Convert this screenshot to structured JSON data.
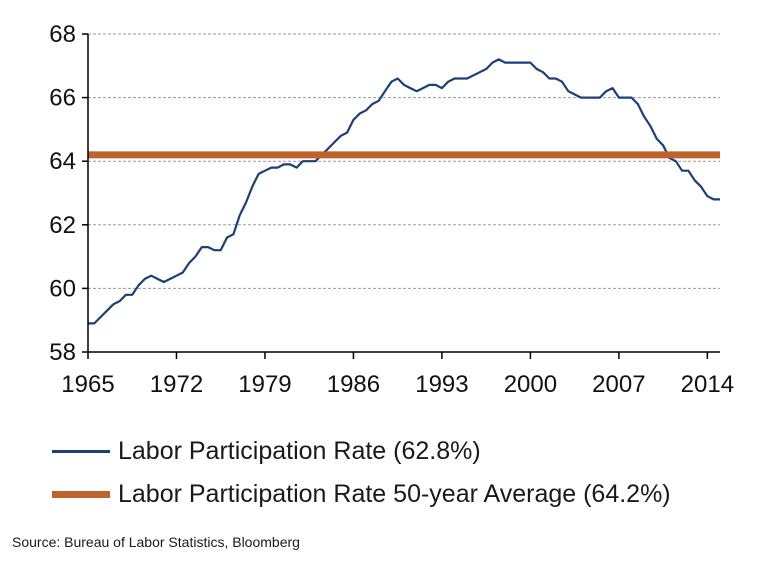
{
  "colors": {
    "series": "#1b3f7a",
    "average": "#c0622b",
    "grid": "#9a9a9a",
    "axis": "#000000"
  },
  "legend": {
    "series_label": "Labor Participation Rate (62.8%)",
    "average_label": "Labor Participation Rate 50-year Average (64.2%)"
  },
  "source": "Source: Bureau of Labor Statistics, Bloomberg",
  "chart_data": {
    "type": "line",
    "title": "",
    "xlabel": "",
    "ylabel": "",
    "xlim": [
      1965,
      2015
    ],
    "ylim": [
      58,
      68
    ],
    "x_ticks": [
      1965,
      1972,
      1979,
      1986,
      1993,
      2000,
      2007,
      2014
    ],
    "y_ticks": [
      58,
      60,
      62,
      64,
      66,
      68
    ],
    "grid": "horizontal dashed",
    "legend_position": "bottom",
    "series": [
      {
        "name": "Labor Participation Rate (62.8%)",
        "x": [
          1965.0,
          1965.5,
          1966.0,
          1966.5,
          1967.0,
          1967.5,
          1968.0,
          1968.5,
          1969.0,
          1969.5,
          1970.0,
          1970.5,
          1971.0,
          1971.5,
          1972.0,
          1972.5,
          1973.0,
          1973.5,
          1974.0,
          1974.5,
          1975.0,
          1975.5,
          1976.0,
          1976.5,
          1977.0,
          1977.5,
          1978.0,
          1978.5,
          1979.0,
          1979.5,
          1980.0,
          1980.5,
          1981.0,
          1981.5,
          1982.0,
          1982.5,
          1983.0,
          1983.5,
          1984.0,
          1984.5,
          1985.0,
          1985.5,
          1986.0,
          1986.5,
          1987.0,
          1987.5,
          1988.0,
          1988.5,
          1989.0,
          1989.5,
          1990.0,
          1990.5,
          1991.0,
          1991.5,
          1992.0,
          1992.5,
          1993.0,
          1993.5,
          1994.0,
          1994.5,
          1995.0,
          1995.5,
          1996.0,
          1996.5,
          1997.0,
          1997.5,
          1998.0,
          1998.5,
          1999.0,
          1999.5,
          2000.0,
          2000.5,
          2001.0,
          2001.5,
          2002.0,
          2002.5,
          2003.0,
          2003.5,
          2004.0,
          2004.5,
          2005.0,
          2005.5,
          2006.0,
          2006.5,
          2007.0,
          2007.5,
          2008.0,
          2008.5,
          2009.0,
          2009.5,
          2010.0,
          2010.5,
          2011.0,
          2011.5,
          2012.0,
          2012.5,
          2013.0,
          2013.5,
          2014.0,
          2014.5,
          2015.0
        ],
        "values": [
          58.9,
          58.9,
          59.1,
          59.3,
          59.5,
          59.6,
          59.8,
          59.8,
          60.1,
          60.3,
          60.4,
          60.3,
          60.2,
          60.3,
          60.4,
          60.5,
          60.8,
          61.0,
          61.3,
          61.3,
          61.2,
          61.2,
          61.6,
          61.7,
          62.3,
          62.7,
          63.2,
          63.6,
          63.7,
          63.8,
          63.8,
          63.9,
          63.9,
          63.8,
          64.0,
          64.0,
          64.0,
          64.2,
          64.4,
          64.6,
          64.8,
          64.9,
          65.3,
          65.5,
          65.6,
          65.8,
          65.9,
          66.2,
          66.5,
          66.6,
          66.4,
          66.3,
          66.2,
          66.3,
          66.4,
          66.4,
          66.3,
          66.5,
          66.6,
          66.6,
          66.6,
          66.7,
          66.8,
          66.9,
          67.1,
          67.2,
          67.1,
          67.1,
          67.1,
          67.1,
          67.1,
          66.9,
          66.8,
          66.6,
          66.6,
          66.5,
          66.2,
          66.1,
          66.0,
          66.0,
          66.0,
          66.0,
          66.2,
          66.3,
          66.0,
          66.0,
          66.0,
          65.8,
          65.4,
          65.1,
          64.7,
          64.5,
          64.1,
          64.0,
          63.7,
          63.7,
          63.4,
          63.2,
          62.9,
          62.8,
          62.8
        ]
      },
      {
        "name": "Labor Participation Rate 50-year Average (64.2%)",
        "x": [
          1965,
          2015
        ],
        "values": [
          64.2,
          64.2
        ]
      }
    ]
  }
}
